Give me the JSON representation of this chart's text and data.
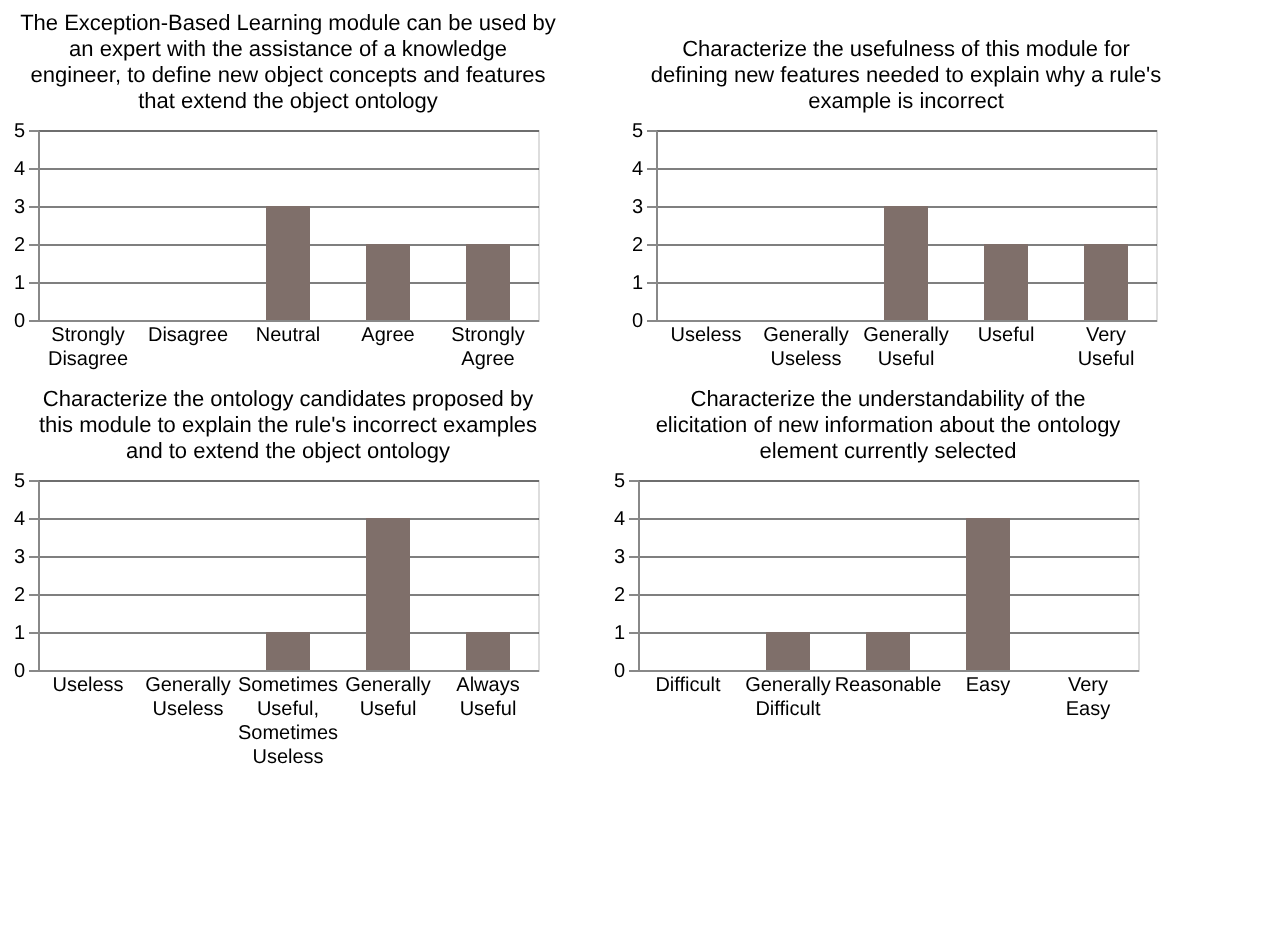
{
  "chart_data": [
    {
      "type": "bar",
      "title": "The Exception-Based Learning module can be used by an expert with the assistance of a knowledge engineer, to define new object concepts and features that extend the object ontology",
      "categories": [
        "Strongly Disagree",
        "Disagree",
        "Neutral",
        "Agree",
        "Strongly Agree"
      ],
      "values": [
        0,
        0,
        3,
        2,
        2
      ],
      "color": "#7f6f6a",
      "ylim": [
        0,
        5
      ],
      "yticks": [
        0,
        1,
        2,
        3,
        4,
        5
      ],
      "grid": "y"
    },
    {
      "type": "bar",
      "title": "Characterize the usefulness of this module for defining new features needed to explain why a rule's example is incorrect",
      "categories": [
        "Useless",
        "Generally Useless",
        "Generally Useful",
        "Useful",
        "Very Useful"
      ],
      "values": [
        0,
        0,
        3,
        2,
        2
      ],
      "color": "#7f6f6a",
      "ylim": [
        0,
        5
      ],
      "yticks": [
        0,
        1,
        2,
        3,
        4,
        5
      ],
      "grid": "y"
    },
    {
      "type": "bar",
      "title": "Characterize the ontology candidates proposed by this module to explain the rule's incorrect examples and to extend the object ontology",
      "categories": [
        "Useless",
        "Generally Useless",
        "Sometimes Useful, Sometimes Useless",
        "Generally Useful",
        "Always Useful"
      ],
      "values": [
        0,
        0,
        1,
        4,
        1
      ],
      "color": "#7f6f6a",
      "ylim": [
        0,
        5
      ],
      "yticks": [
        0,
        1,
        2,
        3,
        4,
        5
      ],
      "grid": "y"
    },
    {
      "type": "bar",
      "title": "Characterize the understandability of the elicitation of new information about the ontology element currently selected",
      "categories": [
        "Difficult",
        "Generally Difficult",
        "Reasonable",
        "Easy",
        "Very Easy"
      ],
      "values": [
        0,
        1,
        1,
        4,
        0
      ],
      "color": "#7f6f6a",
      "ylim": [
        0,
        5
      ],
      "yticks": [
        0,
        1,
        2,
        3,
        4,
        5
      ],
      "grid": "y"
    }
  ]
}
